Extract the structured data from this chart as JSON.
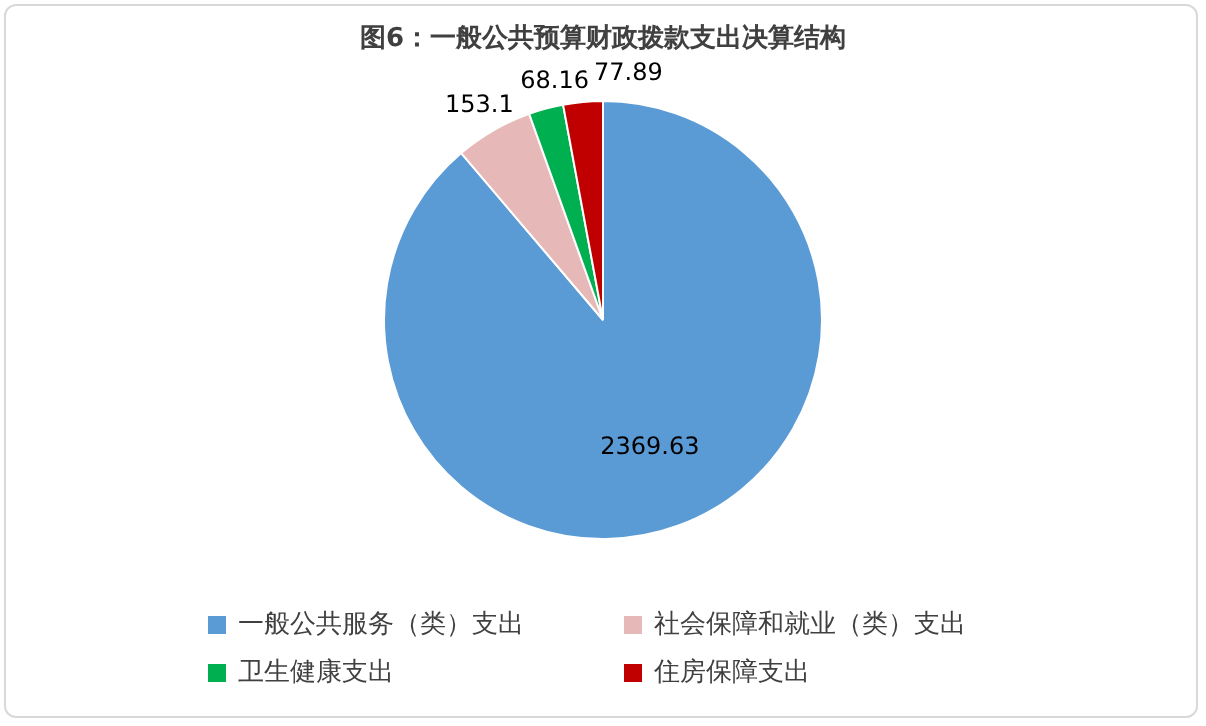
{
  "chart_data": {
    "type": "pie",
    "title": "图6：一般公共预算财政拨款支出决算结构",
    "categories": [
      "一般公共服务（类）支出",
      "社会保障和就业（类）支出",
      "卫生健康支出",
      "住房保障支出"
    ],
    "values": [
      2369.63,
      153.1,
      68.16,
      77.89
    ],
    "colors": [
      "#5b9bd5",
      "#e6b9b8",
      "#00b050",
      "#c00000"
    ],
    "data_labels": true,
    "legend": "bottom"
  }
}
